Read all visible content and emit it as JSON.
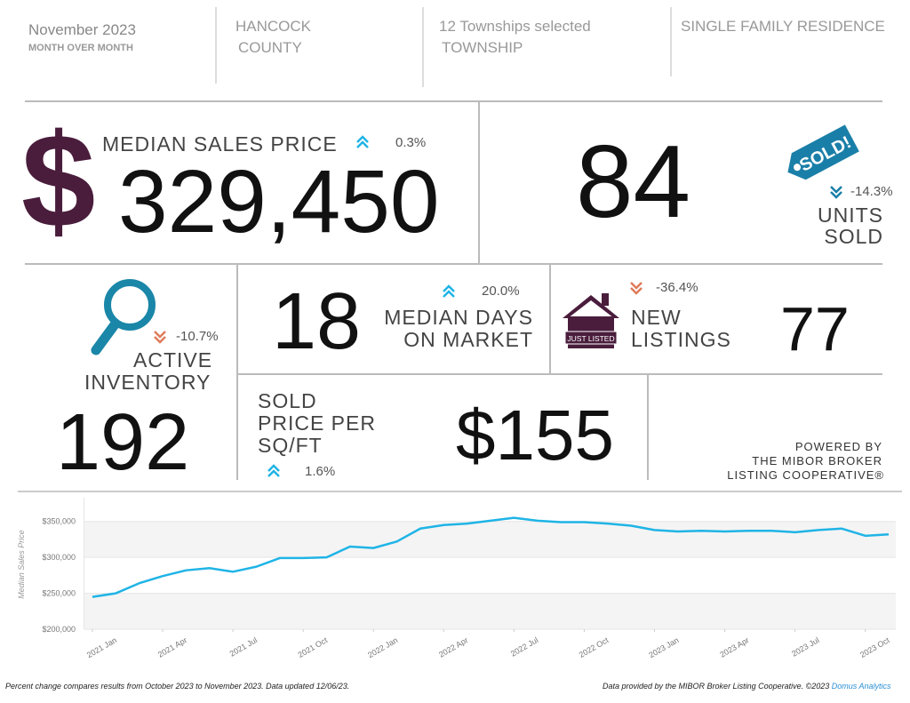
{
  "header": {
    "period": "November 2023",
    "comparison": "MONTH OVER MONTH",
    "area_line1": "HANCOCK",
    "area_line2": "COUNTY",
    "townships": "12 Townships selected",
    "township_label": "TOWNSHIP",
    "property_type": "SINGLE FAMILY RESIDENCE"
  },
  "kpis": {
    "median_sales_price": {
      "symbol": "$",
      "label": "MEDIAN SALES PRICE",
      "value": "329,450",
      "change": "0.3%"
    },
    "units_sold": {
      "value": "84",
      "tag": "SOLD!",
      "change": "-14.3%",
      "label_line1": "UNITS",
      "label_line2": "SOLD"
    },
    "active_inventory": {
      "change": "-10.7%",
      "label_line1": "ACTIVE",
      "label_line2": "INVENTORY",
      "value": "192"
    },
    "median_days_on_market": {
      "value": "18",
      "change": "20.0%",
      "label_line1": "MEDIAN DAYS",
      "label_line2": "ON MARKET"
    },
    "new_listings": {
      "icon_text": "JUST LISTED",
      "change": "-36.4%",
      "label_line1": "NEW",
      "label_line2": "LISTINGS",
      "value": "77"
    },
    "sold_price_per_sqft": {
      "label_line1": "SOLD",
      "label_line2": "PRICE PER",
      "label_line3": "SQ/FT",
      "change": "1.6%",
      "value": "$155"
    }
  },
  "powered_by": {
    "line1": "POWERED BY",
    "line2": "THE MIBOR BROKER",
    "line3": "LISTING COOPERATIVE®"
  },
  "chart_data": {
    "type": "line",
    "y_label": "Median Sales Price",
    "categories": [
      "2021 Jan",
      null,
      null,
      "2021 Apr",
      null,
      null,
      "2021 Jul",
      null,
      null,
      "2021 Oct",
      null,
      null,
      "2022 Jan",
      null,
      null,
      "2022 Apr",
      null,
      null,
      "2022 Jul",
      null,
      null,
      "2022 Oct",
      null,
      null,
      "2023 Jan",
      null,
      null,
      "2023 Apr",
      null,
      null,
      "2023 Jul",
      null,
      null,
      "2023 Oct",
      null
    ],
    "series": [
      {
        "name": "Median Sales Price",
        "color": "#1fb4e6",
        "values": [
          245000,
          250000,
          264000,
          274000,
          282000,
          285000,
          280000,
          287000,
          299000,
          299000,
          300000,
          315000,
          313000,
          322000,
          340000,
          345000,
          347000,
          351000,
          355000,
          351000,
          349000,
          349000,
          347000,
          344000,
          338000,
          336000,
          337000,
          336000,
          337000,
          337000,
          335000,
          338000,
          340000,
          330000,
          332000
        ]
      }
    ],
    "ylim": [
      200000,
      383000
    ],
    "yticks": [
      {
        "value": 200000,
        "label": "$200,000"
      },
      {
        "value": 250000,
        "label": "$250,000"
      },
      {
        "value": 300000,
        "label": "$300,000"
      },
      {
        "value": 350000,
        "label": "$350,000"
      }
    ],
    "grid": true
  },
  "footer": {
    "note": "Percent change compares results from October 2023 to November 2023.  Data updated 12/06/23.",
    "source": "Data provided by the MIBOR Broker Listing Cooperative. ©2023 ",
    "brand": "Domus Analytics"
  }
}
